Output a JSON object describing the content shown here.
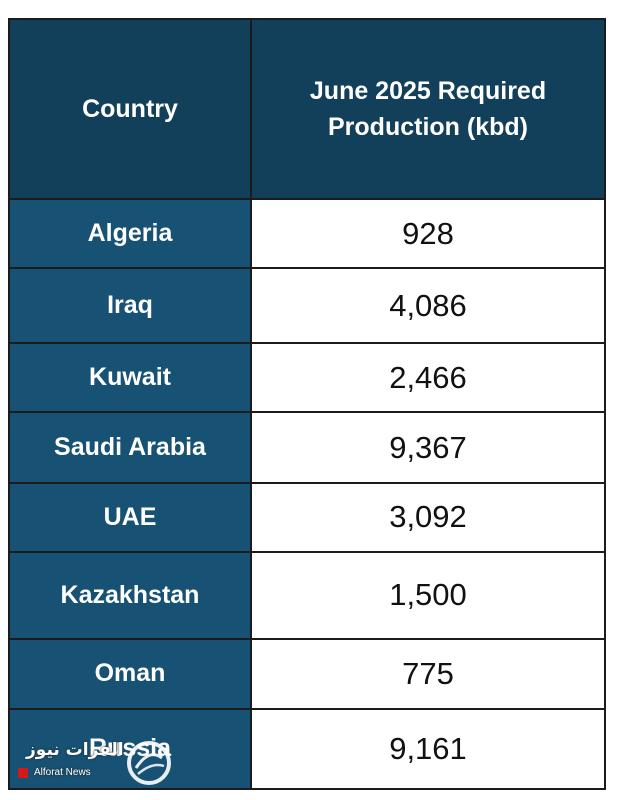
{
  "table": {
    "header": {
      "country": "Country",
      "production_line1": "June 2025 Required",
      "production_line2": "Production (kbd)"
    },
    "rows": [
      {
        "country": "Algeria",
        "value": "928"
      },
      {
        "country": "Iraq",
        "value": "4,086"
      },
      {
        "country": "Kuwait",
        "value": "2,466"
      },
      {
        "country": "Saudi Arabia",
        "value": "9,367"
      },
      {
        "country": "UAE",
        "value": "3,092"
      },
      {
        "country": "Kazakhstan",
        "value": "1,500"
      },
      {
        "country": "Oman",
        "value": "775"
      },
      {
        "country": "Russia",
        "value": "9,161"
      }
    ],
    "colors": {
      "header_bg": "#123f59",
      "country_bg": "#175173",
      "value_bg": "#ffffff",
      "border": "#1b1b1b"
    }
  },
  "watermark": {
    "arabic": "الفرات نيوز",
    "latin": "Alforat News",
    "accent": "#d21a1a"
  }
}
